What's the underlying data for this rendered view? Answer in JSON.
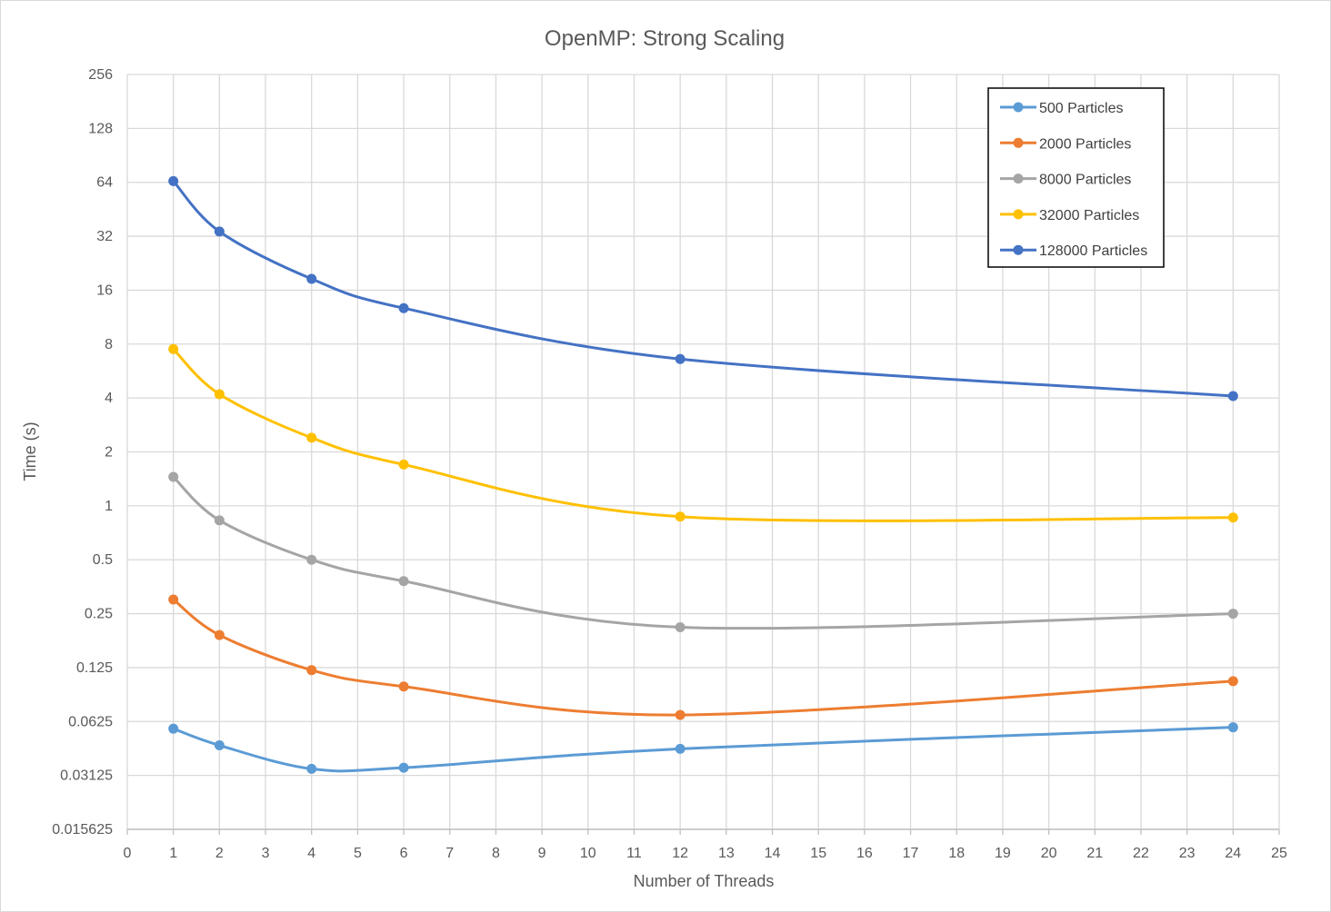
{
  "chart_data": {
    "type": "line",
    "title": "OpenMP: Strong Scaling",
    "xlabel": "Number of Threads",
    "ylabel": "Time (s)",
    "xlim": [
      0,
      25
    ],
    "x_ticks": [
      "0",
      "1",
      "2",
      "3",
      "4",
      "5",
      "6",
      "7",
      "8",
      "9",
      "10",
      "11",
      "12",
      "13",
      "14",
      "15",
      "16",
      "17",
      "18",
      "19",
      "20",
      "21",
      "22",
      "23",
      "24",
      "25"
    ],
    "y_scale": "log2",
    "ylim": [
      0.015625,
      256
    ],
    "y_ticks": [
      {
        "value": 256,
        "label": "256"
      },
      {
        "value": 128,
        "label": "128"
      },
      {
        "value": 64,
        "label": "64"
      },
      {
        "value": 32,
        "label": "32"
      },
      {
        "value": 16,
        "label": "16"
      },
      {
        "value": 8,
        "label": "8"
      },
      {
        "value": 4,
        "label": "4"
      },
      {
        "value": 2,
        "label": "2"
      },
      {
        "value": 1,
        "label": "1"
      },
      {
        "value": 0.5,
        "label": "0.5"
      },
      {
        "value": 0.25,
        "label": "0.25"
      },
      {
        "value": 0.125,
        "label": "0.125"
      },
      {
        "value": 0.0625,
        "label": "0.0625"
      },
      {
        "value": 0.03125,
        "label": "0.03125"
      },
      {
        "value": 0.015625,
        "label": "0.015625"
      }
    ],
    "grid": true,
    "legend_position": "top-right",
    "x": [
      1,
      2,
      4,
      6,
      12,
      24
    ],
    "series": [
      {
        "name": "500 Particles",
        "color": "#5b9bd5",
        "values": [
          0.057,
          0.046,
          0.034,
          0.0345,
          0.044,
          0.058
        ]
      },
      {
        "name": "2000 Particles",
        "color": "#ed7d31",
        "values": [
          0.3,
          0.19,
          0.121,
          0.098,
          0.068,
          0.105
        ]
      },
      {
        "name": "8000 Particles",
        "color": "#a5a5a5",
        "values": [
          1.45,
          0.83,
          0.5,
          0.38,
          0.21,
          0.25
        ]
      },
      {
        "name": "32000 Particles",
        "color": "#ffc000",
        "values": [
          7.5,
          4.2,
          2.4,
          1.7,
          0.87,
          0.86
        ]
      },
      {
        "name": "128000 Particles",
        "color": "#4472c4",
        "values": [
          65,
          34,
          18.5,
          12.7,
          6.6,
          4.1
        ]
      }
    ]
  }
}
